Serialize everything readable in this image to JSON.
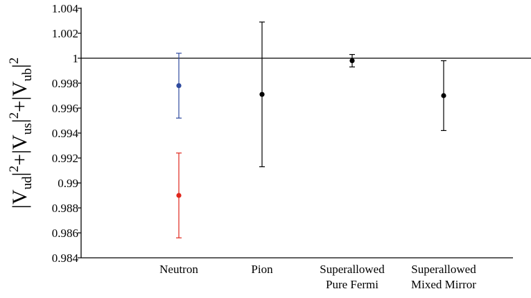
{
  "chart_data": {
    "type": "scatter",
    "title": "",
    "xlabel": "",
    "ylabel": {
      "parts": [
        {
          "t": "|V",
          "k": "n"
        },
        {
          "t": "ud",
          "k": "sub"
        },
        {
          "t": "|",
          "k": "n"
        },
        {
          "t": "2",
          "k": "sup"
        },
        {
          "t": "+|V",
          "k": "n"
        },
        {
          "t": "us",
          "k": "sub"
        },
        {
          "t": "|",
          "k": "n"
        },
        {
          "t": "2",
          "k": "sup"
        },
        {
          "t": "+|V",
          "k": "n"
        },
        {
          "t": "ub",
          "k": "sub"
        },
        {
          "t": "|",
          "k": "n"
        },
        {
          "t": "2",
          "k": "sup"
        }
      ]
    },
    "ylim": [
      0.984,
      1.004
    ],
    "yticks": [
      "0.984",
      "0.986",
      "0.988",
      "0.99",
      "0.992",
      "0.994",
      "0.996",
      "0.998",
      "1",
      "1.002",
      "1.004"
    ],
    "reference_line": 1.0,
    "categories": [
      {
        "lines": [
          "Neutron"
        ]
      },
      {
        "lines": [
          "Pion"
        ]
      },
      {
        "lines": [
          "Superallowed",
          "Pure Fermi"
        ]
      },
      {
        "lines": [
          "Superallowed",
          "Mixed Mirror"
        ]
      }
    ],
    "points": [
      {
        "category_index": 0,
        "value": 0.9978,
        "err_low": 0.9952,
        "err_high": 1.0004,
        "color": "#2e4a9e"
      },
      {
        "category_index": 0,
        "value": 0.989,
        "err_low": 0.9856,
        "err_high": 0.9924,
        "color": "#e0261c"
      },
      {
        "category_index": 1,
        "value": 0.9971,
        "err_low": 0.9913,
        "err_high": 1.0029,
        "color": "#000000"
      },
      {
        "category_index": 2,
        "value": 0.9998,
        "err_low": 0.9993,
        "err_high": 1.0003,
        "color": "#000000"
      },
      {
        "category_index": 3,
        "value": 0.997,
        "err_low": 0.9942,
        "err_high": 0.9998,
        "color": "#000000"
      }
    ],
    "grid": false,
    "legend": "none"
  }
}
